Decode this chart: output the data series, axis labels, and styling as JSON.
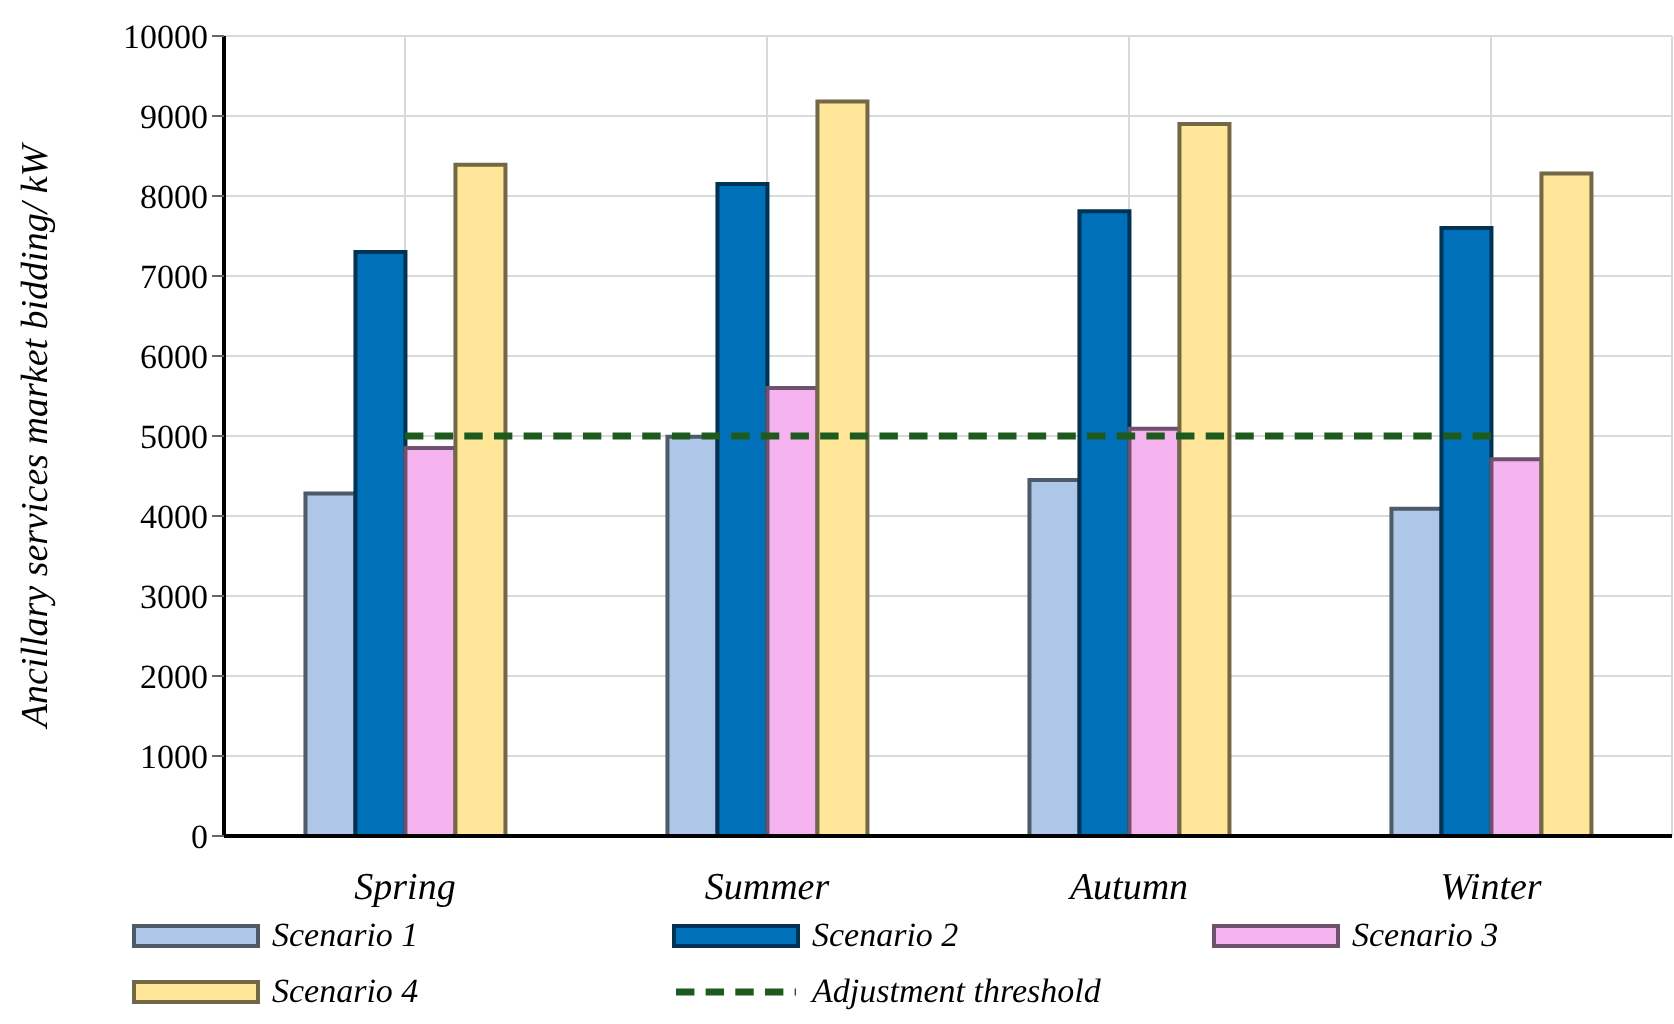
{
  "chart_data": {
    "type": "bar",
    "ylabel": "Ancillary services market bidding/ kW",
    "categories": [
      "Spring",
      "Summer",
      "Autumn",
      "Winter"
    ],
    "series": [
      {
        "name": "Scenario 1",
        "color": "#aec7e8",
        "values": [
          4280,
          4990,
          4450,
          4090
        ]
      },
      {
        "name": "Scenario 2",
        "color": "#0070b8",
        "values": [
          7300,
          8150,
          7810,
          7600
        ]
      },
      {
        "name": "Scenario 3",
        "color": "#f5b3f0",
        "values": [
          4850,
          5600,
          5090,
          4710
        ]
      },
      {
        "name": "Scenario 4",
        "color": "#ffe699",
        "values": [
          8390,
          9180,
          8900,
          8280
        ]
      },
      {
        "name": "Adjustment threshold",
        "type": "line",
        "color": "#1e5a1e",
        "line_style": "dashed",
        "marker": "none",
        "values": [
          5000,
          5000,
          5000,
          5000
        ]
      }
    ],
    "ylim": [
      0,
      10000
    ],
    "yticks": [
      0,
      1000,
      2000,
      3000,
      4000,
      5000,
      6000,
      7000,
      8000,
      9000,
      10000
    ],
    "grid": true,
    "legend": "bottom"
  }
}
